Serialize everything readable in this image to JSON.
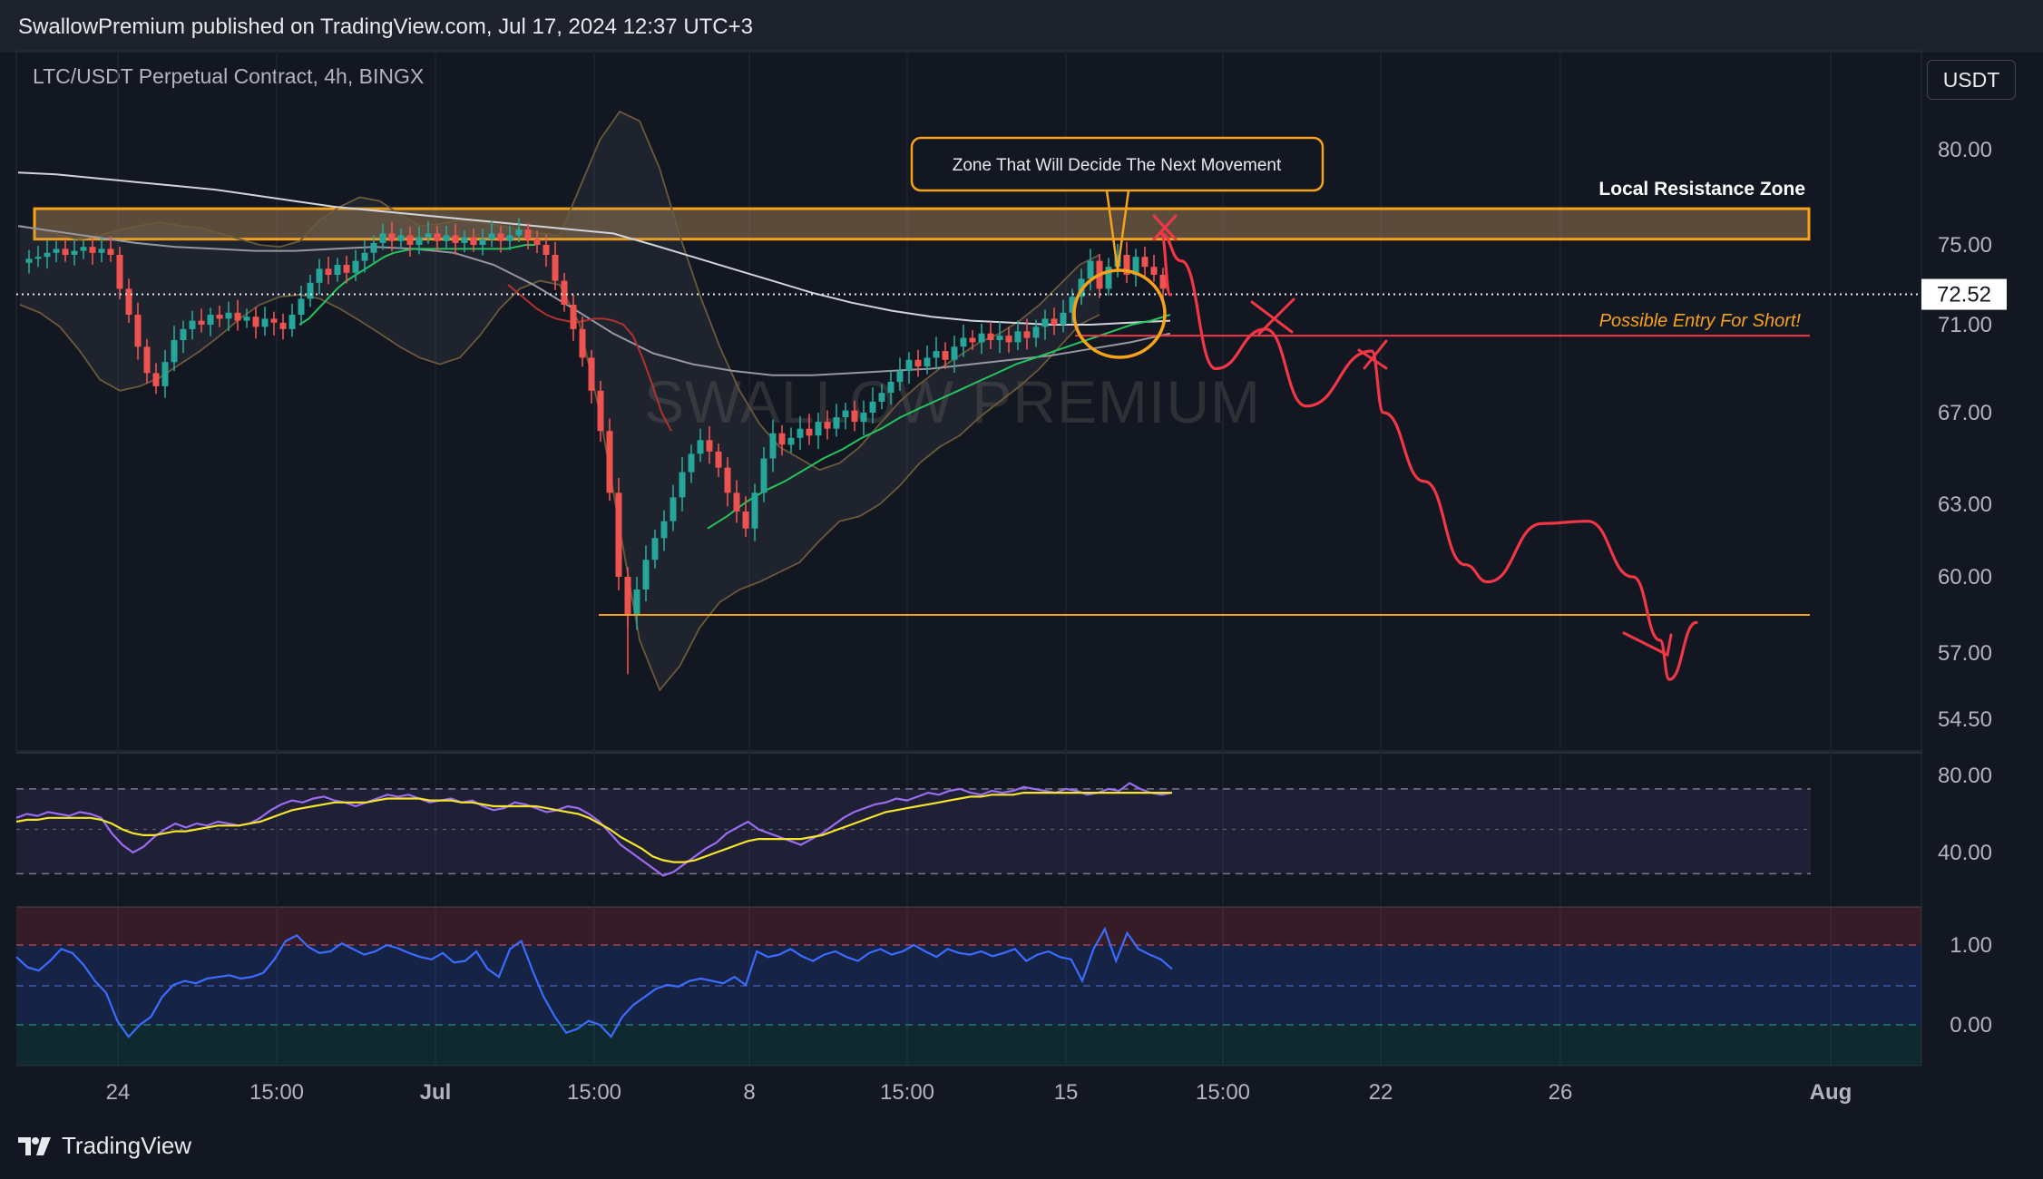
{
  "header": {
    "publisher_text": "SwallowPremium published on TradingView.com, Jul 17, 2024 12:37 UTC+3",
    "symbol_title": "LTC/USDT Perpetual Contract, 4h, BINGX",
    "currency": "USDT"
  },
  "footer": {
    "brand": "TradingView"
  },
  "annotations": {
    "zone_callout": "Zone That Will Decide The Next Movement",
    "resistance_label": "Local Resistance Zone",
    "entry_label": "Possible Entry For Short!",
    "watermark": "SWALLOW PREMIUM",
    "last_price": "72.52"
  },
  "colors": {
    "background": "#131722",
    "up_candle": "#26a69a",
    "down_candle": "#ef5350",
    "zone_orange": "#f7a21b",
    "projection_red": "#f23645",
    "ma_white": "#d1d4dc",
    "ema_green": "#22c55e",
    "rsi_purple": "#9a6cf0",
    "rsi_ma_yellow": "#f5e52c",
    "osc_blue": "#2962ff"
  },
  "chart_data": {
    "type": "candlestick",
    "title": "LTC/USDT Perpetual Contract, 4h, BINGX",
    "y_ticks": [
      "80.00",
      "75.00",
      "71.00",
      "67.00",
      "63.00",
      "60.00",
      "57.00",
      "54.50"
    ],
    "x_ticks": [
      "24",
      "15:00",
      "Jul",
      "15:00",
      "8",
      "15:00",
      "15",
      "15:00",
      "22",
      "26",
      "Aug"
    ],
    "rsi_ticks": [
      "80.00",
      "40.00"
    ],
    "osc_ticks": [
      "1.00",
      "0.00"
    ],
    "current_price": 72.52,
    "resistance_zone": [
      75.3,
      76.9
    ],
    "short_entry_level": 70.5,
    "support_level": 58.5,
    "price_path": [
      74.1,
      74.3,
      74.4,
      74.6,
      74.8,
      74.5,
      74.7,
      74.9,
      74.6,
      74.8,
      74.5,
      72.8,
      71.5,
      70.0,
      68.8,
      68.2,
      69.3,
      70.3,
      70.8,
      71.2,
      71.0,
      71.5,
      71.3,
      71.6,
      71.2,
      71.4,
      70.9,
      71.3,
      71.1,
      70.8,
      71.5,
      72.3,
      73.1,
      73.8,
      73.5,
      74.0,
      73.6,
      74.2,
      74.6,
      75.1,
      75.6,
      75.2,
      75.5,
      75.0,
      75.4,
      75.6,
      75.2,
      75.5,
      75.1,
      75.4,
      75.0,
      75.3,
      75.6,
      75.2,
      75.5,
      75.8,
      75.3,
      75.0,
      74.5,
      73.2,
      72.0,
      70.8,
      69.5,
      68.0,
      66.2,
      63.5,
      60.0,
      58.5,
      59.5,
      60.7,
      61.6,
      62.3,
      63.3,
      64.4,
      65.2,
      65.8,
      65.3,
      64.6,
      63.5,
      62.7,
      62.0,
      63.5,
      65.0,
      66.1,
      65.6,
      65.9,
      66.3,
      66.0,
      66.6,
      66.3,
      66.8,
      67.1,
      66.6,
      67.0,
      67.5,
      67.9,
      68.4,
      68.9,
      69.4,
      69.1,
      69.5,
      69.8,
      69.4,
      70.0,
      70.4,
      70.2,
      70.6,
      70.3,
      70.5,
      70.2,
      70.7,
      70.4,
      70.9,
      71.3,
      71.0,
      71.6,
      72.4,
      73.3,
      74.2,
      72.8,
      73.9,
      74.5,
      73.5,
      74.4,
      73.9,
      73.5,
      72.8
    ],
    "projection": [
      72.5,
      75.6,
      74.2,
      69.0,
      70.8,
      67.3,
      69.8,
      67.0,
      64.0,
      60.5,
      59.8,
      62.2,
      62.3,
      60.0,
      57.5,
      56.0,
      58.2
    ],
    "rsi": [
      58,
      60,
      59,
      61,
      60,
      59,
      61,
      60,
      58,
      50,
      44,
      40,
      43,
      48,
      52,
      55,
      53,
      55,
      54,
      56,
      55,
      54,
      55,
      58,
      62,
      65,
      67,
      66,
      68,
      69,
      67,
      66,
      64,
      66,
      68,
      70,
      69,
      70,
      68,
      66,
      67,
      68,
      66,
      67,
      64,
      62,
      63,
      66,
      65,
      63,
      61,
      62,
      64,
      63,
      60,
      56,
      50,
      44,
      40,
      36,
      32,
      28,
      30,
      34,
      38,
      42,
      45,
      50,
      53,
      56,
      52,
      50,
      48,
      46,
      44,
      47,
      50,
      54,
      58,
      61,
      63,
      65,
      66,
      68,
      67,
      69,
      71,
      70,
      72,
      73,
      71,
      70,
      72,
      71,
      72,
      74,
      73,
      72,
      71,
      73,
      72,
      70,
      71,
      73,
      72,
      76,
      73,
      71,
      70,
      71
    ],
    "rsi_ma": [
      56,
      57,
      57,
      58,
      58,
      58,
      58,
      58,
      57,
      55,
      52,
      50,
      49,
      49,
      50,
      51,
      51,
      52,
      53,
      54,
      54,
      54,
      55,
      56,
      58,
      60,
      62,
      63,
      64,
      65,
      66,
      66,
      66,
      66,
      67,
      68,
      68,
      68,
      68,
      67,
      67,
      67,
      66,
      66,
      65,
      64,
      64,
      64,
      64,
      64,
      63,
      62,
      61,
      60,
      58,
      55,
      52,
      48,
      45,
      42,
      38,
      36,
      35,
      35,
      36,
      38,
      40,
      42,
      44,
      46,
      47,
      47,
      47,
      47,
      47,
      48,
      49,
      51,
      53,
      55,
      57,
      59,
      61,
      62,
      63,
      64,
      65,
      66,
      67,
      68,
      69,
      69,
      70,
      70,
      70,
      71,
      71,
      71,
      71,
      71,
      71,
      71,
      71,
      71,
      71,
      71,
      71,
      71,
      71,
      71
    ],
    "oscillator": [
      0.85,
      0.72,
      0.68,
      0.8,
      0.95,
      0.9,
      0.75,
      0.55,
      0.4,
      0.05,
      -0.15,
      0.0,
      0.1,
      0.35,
      0.5,
      0.55,
      0.52,
      0.58,
      0.6,
      0.62,
      0.58,
      0.6,
      0.65,
      0.82,
      1.05,
      1.12,
      0.98,
      0.9,
      0.92,
      1.02,
      0.95,
      0.88,
      0.92,
      1.0,
      0.96,
      0.9,
      0.85,
      0.82,
      0.9,
      0.78,
      0.8,
      0.92,
      0.7,
      0.6,
      0.95,
      1.05,
      0.68,
      0.35,
      0.1,
      -0.1,
      -0.05,
      0.05,
      0.0,
      -0.15,
      0.1,
      0.25,
      0.35,
      0.45,
      0.5,
      0.48,
      0.55,
      0.58,
      0.55,
      0.52,
      0.6,
      0.5,
      0.92,
      0.85,
      0.88,
      0.95,
      0.86,
      0.8,
      0.88,
      0.92,
      0.85,
      0.8,
      0.9,
      0.95,
      0.88,
      0.92,
      1.0,
      0.92,
      0.85,
      0.95,
      0.9,
      0.88,
      0.92,
      0.86,
      0.9,
      0.95,
      0.8,
      0.88,
      0.92,
      0.85,
      0.82,
      0.55,
      0.95,
      1.2,
      0.8,
      1.15,
      0.95,
      0.88,
      0.82,
      0.7
    ],
    "ma_slow": [
      78.8,
      78.7,
      78.5,
      78.3,
      78.1,
      77.9,
      77.6,
      77.3,
      77.0,
      76.8,
      76.6,
      76.4,
      76.2,
      76.0,
      75.8,
      75.6,
      75.0,
      74.4,
      73.8,
      73.2,
      72.6,
      72.1,
      71.7,
      71.4,
      71.2,
      71.1,
      71.0,
      71.0,
      71.1,
      71.2
    ],
    "ma_lower": [
      76.0,
      75.7,
      75.4,
      75.1,
      74.9,
      74.8,
      74.7,
      74.7,
      74.8,
      74.9,
      74.8,
      74.6,
      74.0,
      73.0,
      71.8,
      70.6,
      69.7,
      69.2,
      68.9,
      68.7,
      68.7,
      68.8,
      68.9,
      69.0,
      69.2,
      69.4,
      69.6,
      69.9,
      70.2,
      70.6
    ],
    "ema_fast": [
      null,
      null,
      null,
      null,
      null,
      null,
      null,
      null,
      null,
      null,
      null,
      null,
      null,
      null,
      null,
      null,
      null,
      null,
      null,
      null,
      null,
      null,
      null,
      null,
      null,
      null,
      null,
      null,
      null,
      null,
      71.0,
      71.3,
      71.8,
      72.3,
      72.8,
      73.2,
      73.5,
      73.8,
      74.1,
      74.4,
      74.6,
      74.7,
      74.8,
      74.8,
      74.8,
      74.8,
      74.8,
      74.8,
      74.8,
      74.8,
      74.8,
      74.8,
      74.8,
      74.9,
      75.0,
      75.0
    ],
    "ema_green_tail": [
      62.0,
      62.5,
      63.1,
      63.6,
      64.0,
      64.5,
      65.0,
      65.4,
      65.9,
      66.3,
      66.8,
      67.2,
      67.6,
      68.0,
      68.4,
      68.8,
      69.2,
      69.5,
      69.8,
      70.1,
      70.4,
      70.7,
      71.0,
      71.2,
      71.5
    ],
    "red_ma": [
      73.0,
      72.6,
      72.2,
      71.8,
      71.5,
      71.3,
      71.2,
      71.1,
      71.2,
      71.3,
      71.3,
      71.2,
      71.0,
      70.5,
      69.5,
      68.3,
      67.0,
      66.2
    ],
    "bollinger_upper": [
      76.0,
      75.8,
      75.5,
      75.3,
      75.5,
      75.8,
      76.0,
      76.2,
      76.0,
      75.9,
      75.6,
      75.3,
      75.0,
      74.9,
      75.2,
      76.3,
      77.0,
      77.5,
      77.3,
      76.6,
      76.0,
      76.1,
      76.3,
      76.2,
      76.0,
      75.8,
      75.6,
      75.5,
      78.0,
      80.5,
      82.0,
      81.5,
      79.0,
      75.5,
      72.5,
      70.0,
      68.0,
      66.5,
      65.5,
      65.0,
      64.5,
      64.8,
      65.5,
      66.5,
      67.5,
      68.3,
      69.0,
      69.6,
      70.2,
      70.6,
      71.2,
      72.0,
      73.0,
      74.0,
      74.5
    ],
    "bollinger_lower": [
      72.0,
      71.6,
      70.9,
      69.8,
      68.5,
      68.0,
      68.2,
      68.6,
      69.2,
      69.8,
      70.5,
      71.3,
      72.0,
      72.4,
      72.5,
      72.3,
      71.8,
      71.2,
      70.6,
      70.0,
      69.5,
      69.2,
      69.5,
      70.5,
      71.8,
      72.8,
      73.2,
      73.0,
      71.0,
      67.0,
      62.0,
      57.5,
      55.6,
      56.5,
      58.0,
      59.0,
      59.5,
      59.8,
      60.2,
      60.6,
      61.5,
      62.3,
      62.5,
      63.0,
      63.8,
      64.8,
      65.5,
      66.0,
      66.8,
      67.5,
      68.2,
      69.0,
      70.0,
      71.0,
      71.5
    ]
  }
}
